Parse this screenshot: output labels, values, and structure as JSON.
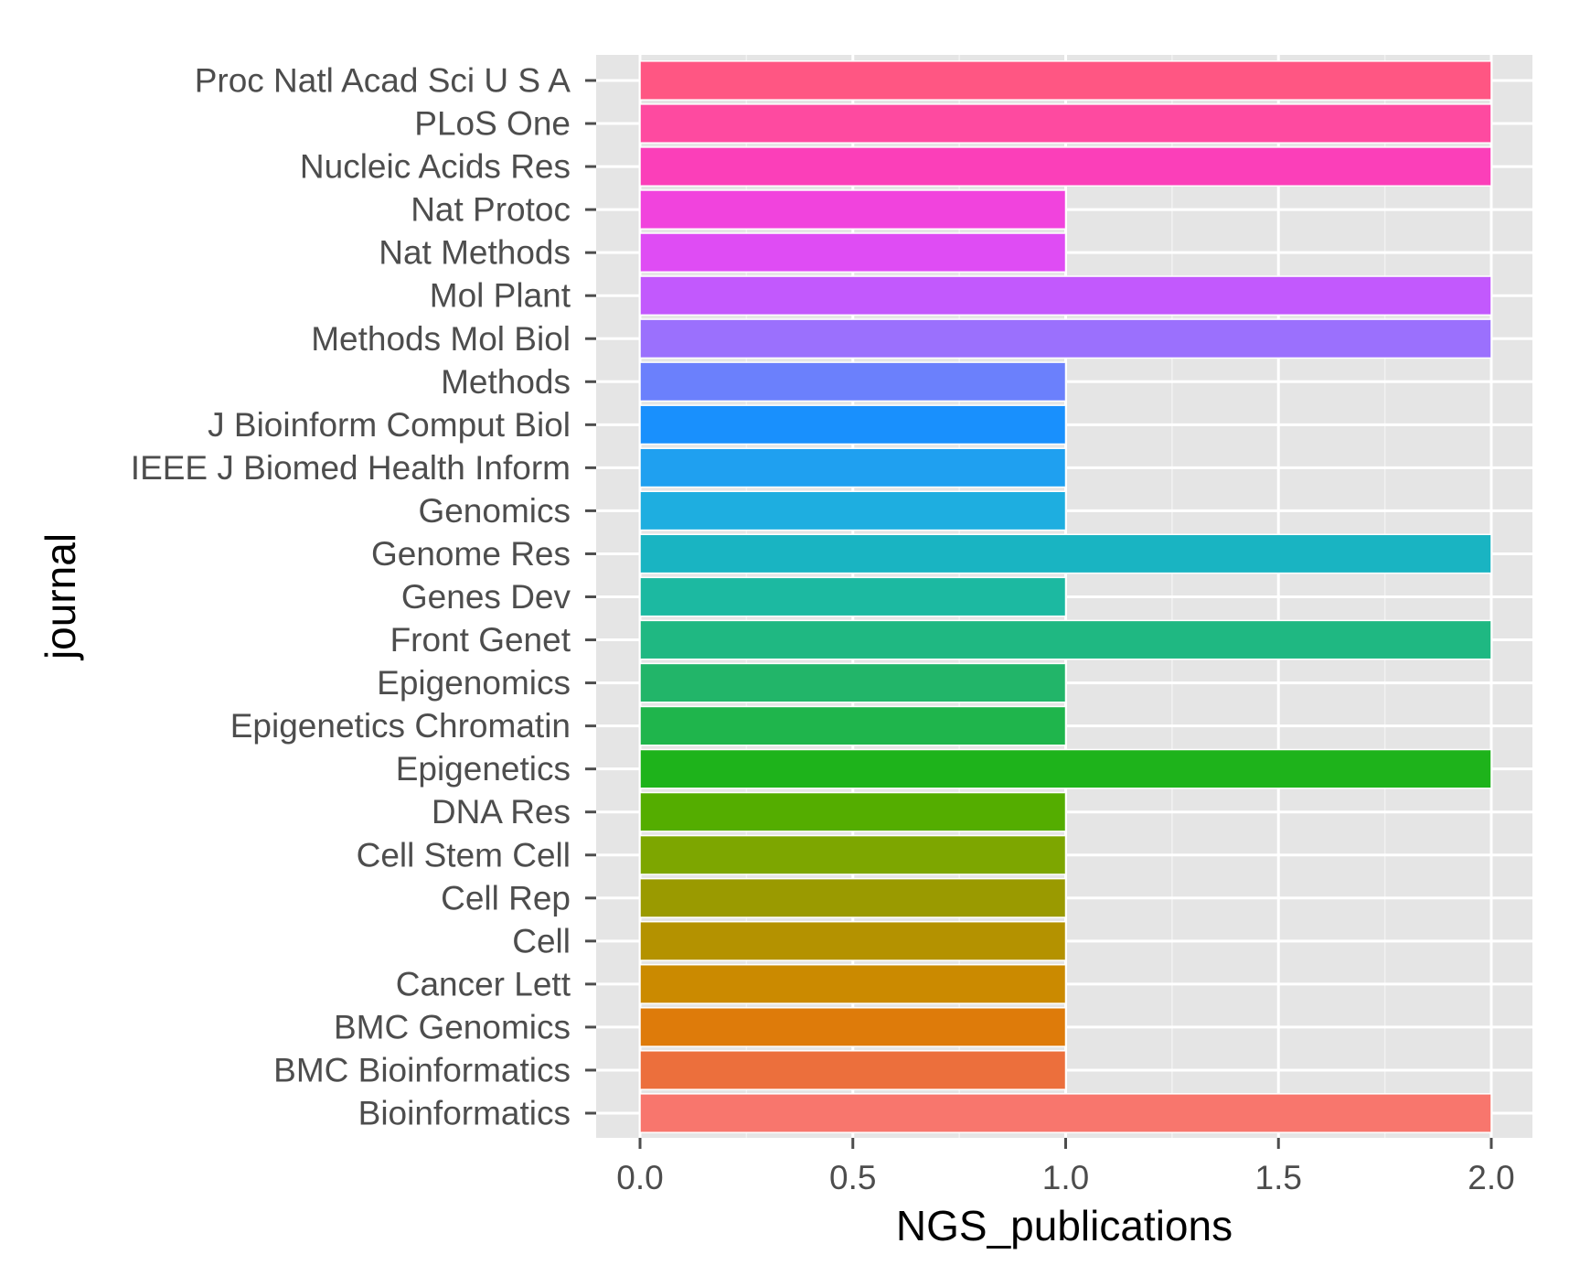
{
  "chart_data": {
    "type": "bar",
    "orientation": "horizontal",
    "xlabel": "NGS_publications",
    "ylabel": "journal",
    "xlim": [
      0,
      2.1
    ],
    "x_ticks": [
      "0.0",
      "0.5",
      "1.0",
      "1.5",
      "2.0"
    ],
    "x_tick_values": [
      0,
      0.5,
      1.0,
      1.5,
      2.0
    ],
    "grid": true,
    "legend": "none",
    "panel_background": "#e5e5e5",
    "categories": [
      "Bioinformatics",
      "BMC Bioinformatics",
      "BMC Genomics",
      "Cancer Lett",
      "Cell",
      "Cell Rep",
      "Cell Stem Cell",
      "DNA Res",
      "Epigenetics",
      "Epigenetics Chromatin",
      "Epigenomics",
      "Front Genet",
      "Genes Dev",
      "Genome Res",
      "Genomics",
      "IEEE J Biomed Health Inform",
      "J Bioinform Comput Biol",
      "Methods",
      "Methods Mol Biol",
      "Mol Plant",
      "Nat Methods",
      "Nat Protoc",
      "Nucleic Acids Res",
      "PLoS One",
      "Proc Natl Acad Sci U S A"
    ],
    "values": [
      2,
      1,
      1,
      1,
      1,
      1,
      1,
      1,
      2,
      1,
      1,
      2,
      1,
      2,
      1,
      1,
      1,
      1,
      2,
      2,
      1,
      1,
      2,
      2,
      2
    ],
    "colors": [
      "#f8766d",
      "#ec6f3c",
      "#de7b0a",
      "#cb8a00",
      "#b49200",
      "#9a9a00",
      "#7da600",
      "#54ad00",
      "#1eb31b",
      "#1fb54c",
      "#22b569",
      "#1fb882",
      "#1cb9a1",
      "#19b4c2",
      "#1eaee0",
      "#1fa0f0",
      "#1990fd",
      "#6b80fc",
      "#9b70fd",
      "#c259fd",
      "#df4cf4",
      "#f143dd",
      "#fb3fb9",
      "#fe4aa0",
      "#ff5683"
    ]
  }
}
